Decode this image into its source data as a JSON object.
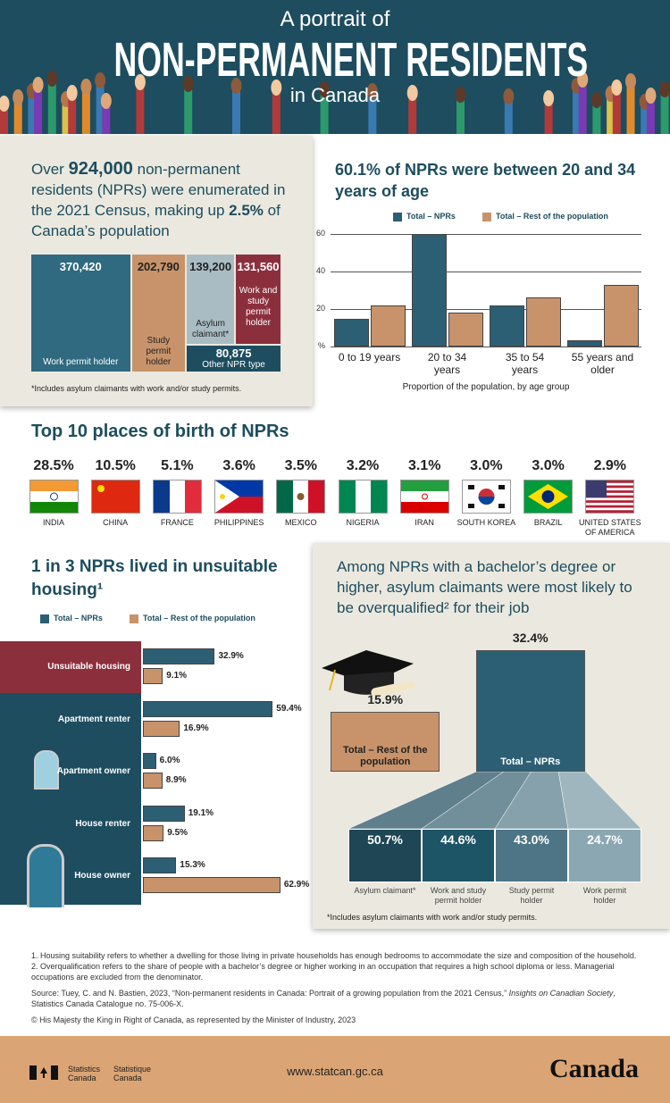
{
  "header": {
    "kicker": "A portrait of",
    "title": "NON-PERMANENT RESIDENTS",
    "subtitle": "in Canada"
  },
  "intro": {
    "parts": [
      "Over",
      "924,000",
      "non-permanent residents (NPRs) were enumerated in the 2021 Census, making up",
      "2.5%",
      "of Canada’s population"
    ]
  },
  "birthplaces": {
    "title": "Top 10 places of birth of NPRs",
    "items": [
      {
        "share": "28.5%",
        "place": "INDIA"
      },
      {
        "share": "10.5%",
        "place": "CHINA"
      },
      {
        "share": "5.1%",
        "place": "FRANCE"
      },
      {
        "share": "3.6%",
        "place": "PHILIPPINES"
      },
      {
        "share": "3.5%",
        "place": "MEXICO"
      },
      {
        "share": "3.2%",
        "place": "NIGERIA"
      },
      {
        "share": "3.1%",
        "place": "IRAN"
      },
      {
        "share": "3.0%",
        "place": "SOUTH KOREA"
      },
      {
        "share": "3.0%",
        "place": "BRAZIL"
      },
      {
        "share": "2.9%",
        "place": "UNITED STATES OF AMERICA"
      }
    ]
  },
  "chart_data": [
    {
      "type": "treemap",
      "categories": [
        "Work permit holder",
        "Study permit holder",
        "Asylum claimant*",
        "Work and study permit holder",
        "Other NPR type"
      ],
      "values": [
        370420,
        202790,
        139200,
        131560,
        80875
      ],
      "value_labels": [
        "370,420",
        "202,790",
        "139,200",
        "131,560",
        "80,875"
      ],
      "colors": [
        "#2f6a80",
        "#c8936a",
        "#a9bcc4",
        "#8c2f3d",
        "#1d4d5f"
      ],
      "note": "*Includes asylum claimants with work and/or study permits."
    },
    {
      "type": "bar",
      "title": "60.1% of NPRs were between 20 and 34 years of age",
      "categories": [
        "0 to 19 years",
        "20 to 34 years",
        "35 to 54 years",
        "55 years and older"
      ],
      "series": [
        {
          "name": "Total – NPRs",
          "color": "#2c5f74",
          "values": [
            15,
            60,
            22,
            3.5
          ]
        },
        {
          "name": "Total – Rest of the population",
          "color": "#c8936a",
          "values": [
            22,
            18,
            26,
            33
          ]
        }
      ],
      "ylim": [
        0,
        65
      ],
      "yticks": [
        {
          "value": 0,
          "label": "%"
        },
        20,
        40,
        60
      ],
      "xlabel": "Proportion of the population, by age group",
      "grid": true
    },
    {
      "type": "hbar",
      "title": "1 in 3 NPRs lived in unsuitable housing¹",
      "categories": [
        "Unsuitable housing",
        "Apartment renter",
        "Apartment owner",
        "House renter",
        "House owner"
      ],
      "series": [
        {
          "name": "Total – NPRs",
          "color": "#2c5f74",
          "values": [
            32.9,
            59.4,
            6,
            19.1,
            15.3
          ],
          "value_labels": [
            "32.9%",
            "59.4%",
            "6.0%",
            "19.1%",
            "15.3%"
          ]
        },
        {
          "name": "Total – Rest of the population",
          "color": "#c8936a",
          "values": [
            9.1,
            16.9,
            8.9,
            9.5,
            62.9
          ],
          "value_labels": [
            "9.1%",
            "16.9%",
            "8.9%",
            "9.5%",
            "62.9%"
          ]
        }
      ],
      "xlim": [
        0,
        65
      ]
    },
    {
      "type": "bar",
      "title": "Among NPRs with a bachelor’s degree or higher, asylum claimants were most likely to be overqualified² for their job",
      "categories": [
        "Total – Rest of the population",
        "Total – NPRs"
      ],
      "values": [
        15.9,
        32.4
      ],
      "value_labels": [
        "15.9%",
        "32.4%"
      ],
      "colors": [
        "#c8936a",
        "#2c5f74"
      ],
      "ylim": [
        0,
        35
      ]
    }
  ],
  "overqualification_breakdown": {
    "items": [
      {
        "share": "50.7%",
        "group": "Asylum claimant*"
      },
      {
        "share": "44.6%",
        "group": "Work and study permit holder"
      },
      {
        "share": "43.0%",
        "group": "Study permit holder"
      },
      {
        "share": "24.7%",
        "group": "Work permit holder"
      }
    ],
    "note": "*Includes asylum claimants with work and/or study permits."
  },
  "notes": [
    "1. Housing suitability refers to whether a dwelling for those living in private households has enough bedrooms to accommodate the size and composition of the household.",
    "2. Overqualification refers to the share of people with a bachelor’s degree or higher working in an occupation that requires a high school diploma or less. Managerial occupations are excluded from the denominator."
  ],
  "source": [
    "Source: Tuey, C. and N. Bastien, 2023, “Non-permanent residents in Canada: Portrait of a growing population from the 2021 Census,”",
    "Insights on Canadian Society",
    ", Statistics Canada Catalogue no. 75-006-X."
  ],
  "copyright": "© His Majesty the King in Right of Canada, as represented by the Minister of Industry, 2023",
  "footer": {
    "agency_en": "Statistics Canada",
    "agency_fr": "Statistique Canada",
    "url": "www.statcan.gc.ca",
    "wordmark": "Canada"
  }
}
